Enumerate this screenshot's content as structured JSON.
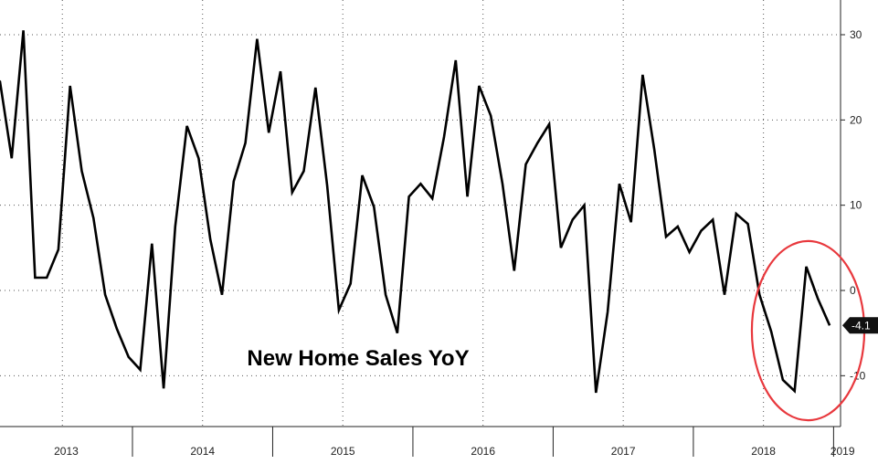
{
  "chart_data": {
    "type": "line",
    "title": "New Home Sales YoY",
    "xlabel": "",
    "ylabel": "",
    "ylim": [
      -16,
      34
    ],
    "y_ticks": [
      30,
      20,
      10,
      0,
      -10
    ],
    "y_tick_labels": [
      "30",
      "20",
      "10",
      "0",
      "-10"
    ],
    "y_axis_side": "right",
    "grid": true,
    "x_axis_labels": [
      "2013",
      "2014",
      "2015",
      "2016",
      "2017",
      "2018",
      "2019"
    ],
    "series": [
      {
        "color": "#000000",
        "x": [
          "2012-12",
          "2013-01",
          "2013-02",
          "2013-03",
          "2013-04",
          "2013-05",
          "2013-06",
          "2013-07",
          "2013-08",
          "2013-09",
          "2013-10",
          "2013-11",
          "2013-12",
          "2014-01",
          "2014-02",
          "2014-03",
          "2014-04",
          "2014-05",
          "2014-06",
          "2014-07",
          "2014-08",
          "2014-09",
          "2014-10",
          "2014-11",
          "2014-12",
          "2015-01",
          "2015-02",
          "2015-03",
          "2015-04",
          "2015-05",
          "2015-06",
          "2015-07",
          "2015-08",
          "2015-09",
          "2015-10",
          "2015-11",
          "2015-12",
          "2016-01",
          "2016-02",
          "2016-03",
          "2016-04",
          "2016-05",
          "2016-06",
          "2016-07",
          "2016-08",
          "2016-09",
          "2016-10",
          "2016-11",
          "2016-12",
          "2017-01",
          "2017-02",
          "2017-03",
          "2017-04",
          "2017-05",
          "2017-06",
          "2017-07",
          "2017-08",
          "2017-09",
          "2017-10",
          "2017-11",
          "2017-12",
          "2018-01",
          "2018-02",
          "2018-03",
          "2018-04",
          "2018-05",
          "2018-06",
          "2018-07",
          "2018-08",
          "2018-09",
          "2018-10",
          "2018-11",
          "2018-12"
        ],
        "values": [
          25.5,
          24.5,
          15.5,
          30.5,
          1.5,
          1.5,
          4.8,
          24.0,
          14.0,
          8.5,
          -0.5,
          -4.5,
          -7.8,
          -9.3,
          5.5,
          -11.5,
          7.5,
          19.3,
          15.5,
          6.0,
          -0.5,
          12.8,
          17.3,
          29.5,
          18.5,
          25.7,
          11.5,
          14.0,
          23.8,
          12.3,
          -2.3,
          0.8,
          13.5,
          9.8,
          -0.5,
          -5.0,
          11.0,
          12.5,
          10.8,
          18.0,
          27.0,
          11.0,
          24.0,
          20.5,
          12.5,
          2.3,
          14.8,
          17.3,
          19.5,
          5.0,
          8.3,
          10.0,
          -12.0,
          -2.5,
          12.5,
          8.0,
          25.3,
          16.5,
          6.3,
          7.5,
          4.5,
          7.0,
          8.3,
          -0.5,
          9.0,
          7.8,
          -0.5,
          -4.8,
          -10.5,
          -11.8,
          2.8,
          -1.0,
          -4.1
        ]
      }
    ],
    "last_value_label": "-4.1",
    "highlight": {
      "type": "ellipse-annotation",
      "color": "#e8383d",
      "around": "last four values (Sep 2018 - Dec 2018)"
    }
  }
}
